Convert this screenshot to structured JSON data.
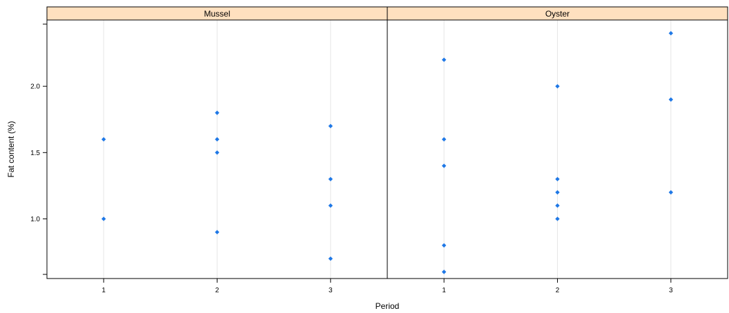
{
  "chart_data": {
    "type": "scatter",
    "layout": "faceted",
    "xlabel": "Period",
    "ylabel": "Fat content (%)",
    "x_categories": [
      "1",
      "2",
      "3"
    ],
    "ylim": [
      0.55,
      2.5
    ],
    "y_ticks": [
      1.0,
      1.5,
      2.0
    ],
    "y_tick_labels": [
      "1.0",
      "1.5",
      "2.0"
    ],
    "grid": "vertical",
    "colors": {
      "point": "#1f78e6",
      "strip_background": "#ffe0bf",
      "grid": "#e6e6e6",
      "frame": "#000000"
    },
    "panels": [
      {
        "name": "Mussel",
        "points": [
          {
            "x": 1,
            "y": 1.6
          },
          {
            "x": 1,
            "y": 1.0
          },
          {
            "x": 2,
            "y": 1.8
          },
          {
            "x": 2,
            "y": 1.6
          },
          {
            "x": 2,
            "y": 1.5
          },
          {
            "x": 2,
            "y": 0.9
          },
          {
            "x": 3,
            "y": 1.7
          },
          {
            "x": 3,
            "y": 1.3
          },
          {
            "x": 3,
            "y": 1.1
          },
          {
            "x": 3,
            "y": 0.7
          }
        ]
      },
      {
        "name": "Oyster",
        "points": [
          {
            "x": 1,
            "y": 2.2
          },
          {
            "x": 1,
            "y": 1.6
          },
          {
            "x": 1,
            "y": 1.4
          },
          {
            "x": 1,
            "y": 0.8
          },
          {
            "x": 1,
            "y": 0.6
          },
          {
            "x": 2,
            "y": 2.0
          },
          {
            "x": 2,
            "y": 1.3
          },
          {
            "x": 2,
            "y": 1.2
          },
          {
            "x": 2,
            "y": 1.1
          },
          {
            "x": 2,
            "y": 1.0
          },
          {
            "x": 3,
            "y": 2.4
          },
          {
            "x": 3,
            "y": 1.9
          },
          {
            "x": 3,
            "y": 1.2
          }
        ]
      }
    ]
  }
}
